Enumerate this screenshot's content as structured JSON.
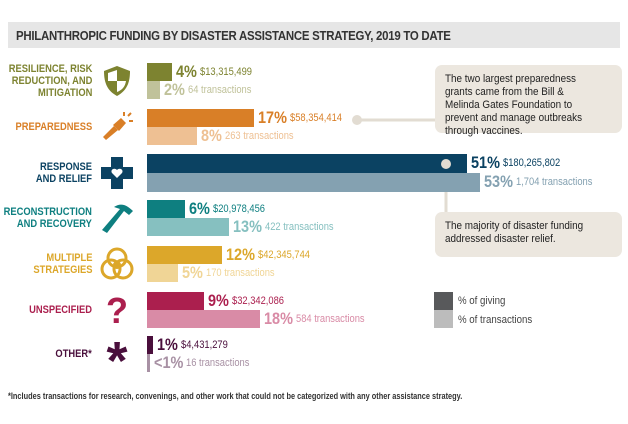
{
  "title": "PHILANTHROPIC FUNDING BY DISASTER ASSISTANCE STRATEGY, 2019 TO DATE",
  "chart_data": {
    "type": "bar",
    "title": "PHILANTHROPIC FUNDING BY DISASTER ASSISTANCE STRATEGY, 2019 TO DATE",
    "orientation": "horizontal",
    "series_names": [
      "% of giving",
      "% of transactions"
    ],
    "categories": [
      {
        "label": "RESILIENCE, RISK REDUCTION, AND MITIGATION",
        "lines": [
          "RESILIENCE, RISK",
          "REDUCTION, AND",
          "MITIGATION"
        ],
        "icon": "shield-icon",
        "giving_pct": 4,
        "giving_label": "4%",
        "amount": "$13,315,499",
        "trans_pct": 2,
        "trans_label": "2%",
        "transactions": "64 transactions",
        "color": "#7d8330",
        "light": "#c0c29a"
      },
      {
        "label": "PREPAREDNESS",
        "lines": [
          "PREPAREDNESS"
        ],
        "icon": "flashlight-icon",
        "giving_pct": 17,
        "giving_label": "17%",
        "amount": "$58,354,414",
        "trans_pct": 8,
        "trans_label": "8%",
        "transactions": "263 transactions",
        "color": "#d97f27",
        "light": "#eec093"
      },
      {
        "label": "RESPONSE AND RELIEF",
        "lines": [
          "RESPONSE",
          "AND RELIEF"
        ],
        "icon": "medical-cross-heart-icon",
        "giving_pct": 51,
        "giving_label": "51%",
        "amount": "$180,265,802",
        "trans_pct": 53,
        "trans_label": "53%",
        "transactions": "1,704 transactions",
        "color": "#0b4262",
        "light": "#84a1b1"
      },
      {
        "label": "RECONSTRUCTION AND RECOVERY",
        "lines": [
          "RECONSTRUCTION",
          "AND RECOVERY"
        ],
        "icon": "hammer-icon",
        "giving_pct": 6,
        "giving_label": "6%",
        "amount": "$20,978,456",
        "trans_pct": 13,
        "trans_label": "13%",
        "transactions": "422 transactions",
        "color": "#0e7f80",
        "light": "#86c0c0"
      },
      {
        "label": "MULTIPLE STRATEGIES",
        "lines": [
          "MULTIPLE",
          "STRATEGIES"
        ],
        "icon": "venn-circles-icon",
        "giving_pct": 12,
        "giving_label": "12%",
        "amount": "$42,345,744",
        "trans_pct": 5,
        "trans_label": "5%",
        "transactions": "170 transactions",
        "color": "#dca72a",
        "light": "#f0d596"
      },
      {
        "label": "UNSPECIFIED",
        "lines": [
          "UNSPECIFIED"
        ],
        "icon": "question-mark-icon",
        "giving_pct": 9,
        "giving_label": "9%",
        "amount": "$32,342,086",
        "trans_pct": 18,
        "trans_label": "18%",
        "transactions": "584 transactions",
        "color": "#ab1f4e",
        "light": "#d98ba6"
      },
      {
        "label": "OTHER*",
        "lines": [
          "OTHER*"
        ],
        "icon": "asterisk-icon",
        "giving_pct": 1,
        "giving_label": "1%",
        "amount": "$4,431,279",
        "trans_pct": 0.4,
        "trans_label": "<1%",
        "transactions": "16 transactions",
        "color": "#4a0f3c",
        "light": "#a891a4"
      }
    ],
    "xlim": [
      0,
      55
    ]
  },
  "callouts": {
    "preparedness": "The two largest preparedness grants came from the Bill & Melinda Gates Foundation to prevent and manage outbreaks through vaccines.",
    "relief": "The majority of disaster funding addressed disaster relief."
  },
  "legend": {
    "giving": "% of giving",
    "transactions": "% of transactions",
    "giving_color": "#58595b",
    "transactions_color": "#bcbcbc"
  },
  "footnote": "*Includes transactions for research, convenings, and other work that could not be categorized with any other assistance strategy."
}
